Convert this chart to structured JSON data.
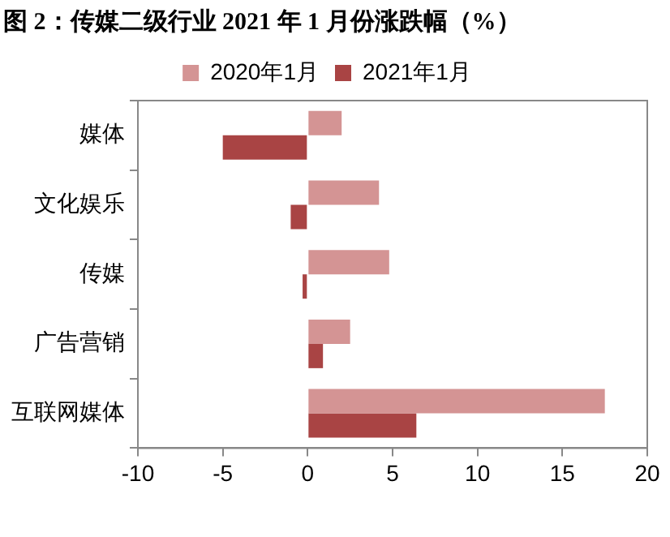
{
  "chart_data": {
    "type": "bar",
    "orientation": "horizontal",
    "title": "图 2：传媒二级行业 2021 年 1 月份涨跌幅（%）",
    "categories": [
      "媒体",
      "文化娱乐",
      "传媒",
      "广告营销",
      "互联网媒体"
    ],
    "series": [
      {
        "name": "2020年1月",
        "color": "#d49494",
        "values": [
          2.0,
          4.2,
          4.8,
          2.5,
          17.5
        ]
      },
      {
        "name": "2021年1月",
        "color": "#a94444",
        "values": [
          -5.0,
          -1.0,
          -0.3,
          0.9,
          6.4
        ]
      }
    ],
    "xlim": [
      -10,
      20
    ],
    "xticks": [
      -10,
      -5,
      0,
      5,
      10,
      15,
      20
    ],
    "grid": false,
    "legend": "top"
  }
}
